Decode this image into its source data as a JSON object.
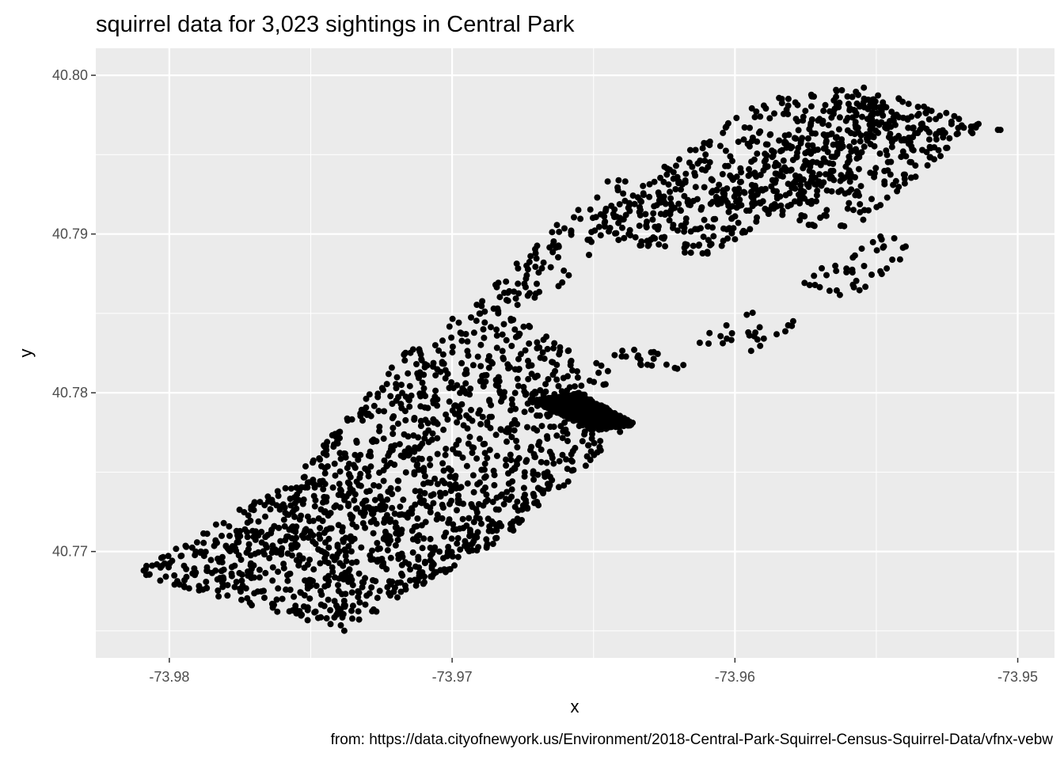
{
  "chart_data": {
    "type": "scatter",
    "title": "squirrel data for 3,023 sightings in Central Park",
    "xlabel": "x",
    "ylabel": "y",
    "caption": "from: https://data.cityofnewyork.us/Environment/2018-Central-Park-Squirrel-Census-Squirrel-Data/vfnx-vebw",
    "xlim": [
      -73.9826,
      -73.9487
    ],
    "ylim": [
      40.7633,
      40.8017
    ],
    "x_ticks": [
      {
        "value": -73.98,
        "label": "-73.98"
      },
      {
        "value": -73.97,
        "label": "-73.97"
      },
      {
        "value": -73.96,
        "label": "-73.96"
      },
      {
        "value": -73.95,
        "label": "-73.95"
      }
    ],
    "y_ticks": [
      {
        "value": 40.77,
        "label": "40.77"
      },
      {
        "value": 40.78,
        "label": "40.78"
      },
      {
        "value": 40.79,
        "label": "40.79"
      },
      {
        "value": 40.8,
        "label": "40.80"
      }
    ],
    "x_minor": [
      -73.985,
      -73.975,
      -73.965,
      -73.955
    ],
    "y_minor": [
      40.765,
      40.775,
      40.785,
      40.795
    ],
    "grid": true,
    "panel_background": "#ebebeb",
    "grid_color": "#ffffff",
    "point_color": "#000000",
    "n_points": 3023,
    "regions": [
      {
        "corners": [
          [
            -73.9813,
            40.7686
          ],
          [
            -73.9738,
            40.765
          ],
          [
            -73.968,
            40.771
          ],
          [
            -73.9755,
            40.7748
          ]
        ],
        "count": 700
      },
      {
        "corners": [
          [
            -73.9755,
            40.7748
          ],
          [
            -73.968,
            40.771
          ],
          [
            -73.9638,
            40.7775
          ],
          [
            -73.9715,
            40.783
          ]
        ],
        "count": 620
      },
      {
        "corners": [
          [
            -73.9715,
            40.783
          ],
          [
            -73.966,
            40.779
          ],
          [
            -73.964,
            40.781
          ],
          [
            -73.969,
            40.786
          ]
        ],
        "count": 150
      },
      {
        "corners": [
          [
            -73.969,
            40.786
          ],
          [
            -73.967,
            40.785
          ],
          [
            -73.9625,
            40.793
          ],
          [
            -73.9645,
            40.7936
          ]
        ],
        "count": 90
      },
      {
        "corners": [
          [
            -73.966,
            40.79
          ],
          [
            -73.961,
            40.7885
          ],
          [
            -73.954,
            40.796
          ],
          [
            -73.959,
            40.7985
          ]
        ],
        "count": 420
      },
      {
        "corners": [
          [
            -73.961,
            40.792
          ],
          [
            -73.956,
            40.79
          ],
          [
            -73.952,
            40.796
          ],
          [
            -73.956,
            40.799
          ]
        ],
        "count": 280
      },
      {
        "corners": [
          [
            -73.959,
            40.7985
          ],
          [
            -73.954,
            40.796
          ],
          [
            -73.9505,
            40.7965
          ],
          [
            -73.9555,
            40.7993
          ]
        ],
        "count": 120
      },
      {
        "corners": [
          [
            -73.9578,
            40.787
          ],
          [
            -73.956,
            40.786
          ],
          [
            -73.953,
            40.789
          ],
          [
            -73.9548,
            40.79
          ]
        ],
        "count": 40
      },
      {
        "corners": [
          [
            -73.9615,
            40.7832
          ],
          [
            -73.9595,
            40.7825
          ],
          [
            -73.9575,
            40.7845
          ],
          [
            -73.9595,
            40.7853
          ]
        ],
        "count": 25
      },
      {
        "corners": [
          [
            -73.9645,
            40.7825
          ],
          [
            -73.9625,
            40.7812
          ],
          [
            -73.9615,
            40.7818
          ],
          [
            -73.9635,
            40.783
          ]
        ],
        "count": 20
      },
      {
        "corners": [
          [
            -73.9672,
            40.7795
          ],
          [
            -73.965,
            40.7776
          ],
          [
            -73.9635,
            40.778
          ],
          [
            -73.9655,
            40.78
          ]
        ],
        "count": 20
      }
    ]
  }
}
